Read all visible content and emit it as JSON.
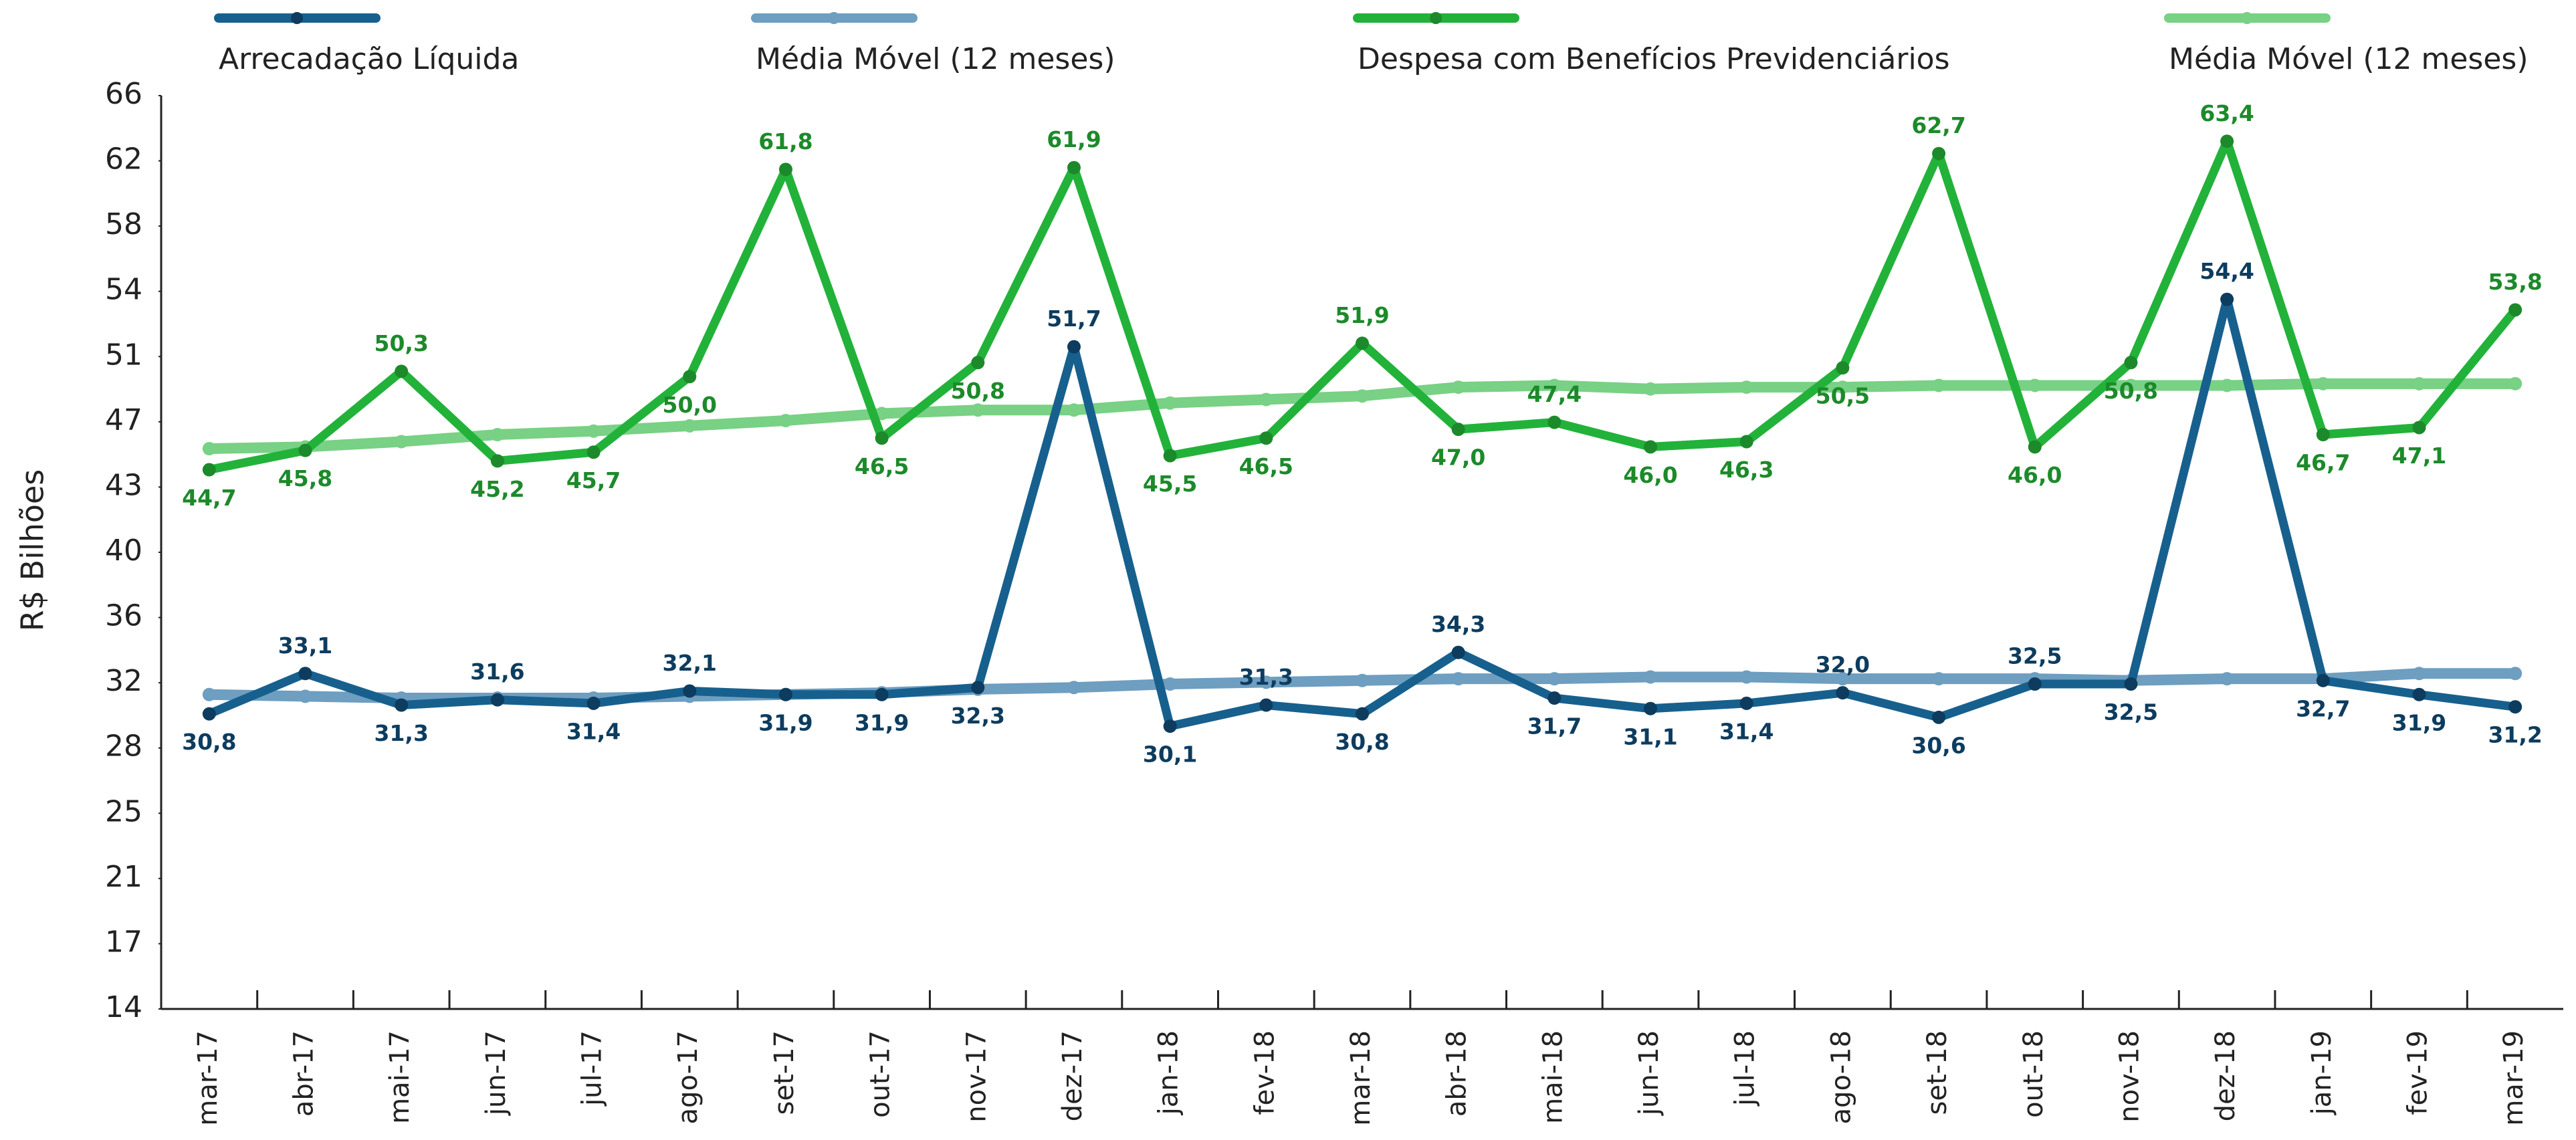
{
  "chart_data": {
    "type": "line",
    "y_label": "R$ Bilhões",
    "categories": [
      "mar-17",
      "abr-17",
      "mai-17",
      "jun-17",
      "jul-17",
      "ago-17",
      "set-17",
      "out-17",
      "nov-17",
      "dez-17",
      "jan-18",
      "fev-18",
      "mar-18",
      "abr-18",
      "mai-18",
      "jun-18",
      "jul-18",
      "ago-18",
      "set-18",
      "out-18",
      "nov-18",
      "dez-18",
      "jan-19",
      "fev-19",
      "mar-19"
    ],
    "ylim": [
      14,
      66
    ],
    "yticks": [
      {
        "value": 14,
        "label": "14"
      },
      {
        "value": 17.714,
        "label": "17"
      },
      {
        "value": 21.429,
        "label": "21"
      },
      {
        "value": 25.143,
        "label": "25"
      },
      {
        "value": 28.857,
        "label": "28"
      },
      {
        "value": 32.571,
        "label": "32"
      },
      {
        "value": 36.286,
        "label": "36"
      },
      {
        "value": 40,
        "label": "40"
      },
      {
        "value": 43.714,
        "label": "43"
      },
      {
        "value": 47.429,
        "label": "47"
      },
      {
        "value": 51.143,
        "label": "51"
      },
      {
        "value": 54.857,
        "label": "54"
      },
      {
        "value": 58.571,
        "label": "58"
      },
      {
        "value": 62.286,
        "label": "62"
      },
      {
        "value": 66,
        "label": "66"
      }
    ],
    "series": [
      {
        "name": "Arrecadação Líquida",
        "color": "#17608e",
        "label_color": "#0d3c5e",
        "values": [
          30.8,
          33.1,
          31.3,
          31.6,
          31.4,
          32.1,
          31.9,
          31.9,
          32.3,
          51.7,
          30.1,
          31.3,
          30.8,
          34.3,
          31.7,
          31.1,
          31.4,
          32.0,
          30.6,
          32.5,
          32.5,
          54.4,
          32.7,
          31.9,
          31.2
        ],
        "value_labels": [
          "30,8",
          "33,1",
          "31,3",
          "31,6",
          "31,4",
          "32,1",
          "31,9",
          "31,9",
          "32,3",
          "51,7",
          "30,1",
          "31,3",
          "30,8",
          "34,3",
          "31,7",
          "31,1",
          "31,4",
          "32,0",
          "30,6",
          "32,5",
          "32,5",
          "54,4",
          "32,7",
          "31,9",
          "31,2"
        ]
      },
      {
        "name": "Média Móvel (12 meses)",
        "color": "#6e9ec0",
        "values": [
          31.9,
          31.8,
          31.7,
          31.7,
          31.7,
          31.8,
          31.9,
          32.0,
          32.2,
          32.3,
          32.5,
          32.6,
          32.7,
          32.8,
          32.8,
          32.9,
          32.9,
          32.8,
          32.8,
          32.8,
          32.7,
          32.8,
          32.8,
          33.1,
          33.1
        ]
      },
      {
        "name": "Despesa com Benefícios Previdenciários",
        "color": "#22b23a",
        "label_color": "#1c8a2a",
        "values": [
          44.7,
          45.8,
          50.3,
          45.2,
          45.7,
          50.0,
          61.8,
          46.5,
          50.8,
          61.9,
          45.5,
          46.5,
          51.9,
          47.0,
          47.4,
          46.0,
          46.3,
          50.5,
          62.7,
          46.0,
          50.8,
          63.4,
          46.7,
          47.1,
          53.8
        ],
        "value_labels": [
          "44,7",
          "45,8",
          "50,3",
          "45,2",
          "45,7",
          "50,0",
          "61,8",
          "46,5",
          "50,8",
          "61,9",
          "45,5",
          "46,5",
          "51,9",
          "47,0",
          "47,4",
          "46,0",
          "46,3",
          "50,5",
          "62,7",
          "46,0",
          "50,8",
          "63,4",
          "46,7",
          "47,1",
          "53,8"
        ]
      },
      {
        "name": "Média Móvel (12 meses)",
        "color": "#78d184",
        "values": [
          45.9,
          46.0,
          46.3,
          46.7,
          46.9,
          47.2,
          47.5,
          47.9,
          48.1,
          48.1,
          48.5,
          48.7,
          48.9,
          49.4,
          49.5,
          49.3,
          49.4,
          49.4,
          49.5,
          49.5,
          49.5,
          49.5,
          49.6,
          49.6,
          49.6
        ]
      }
    ]
  }
}
